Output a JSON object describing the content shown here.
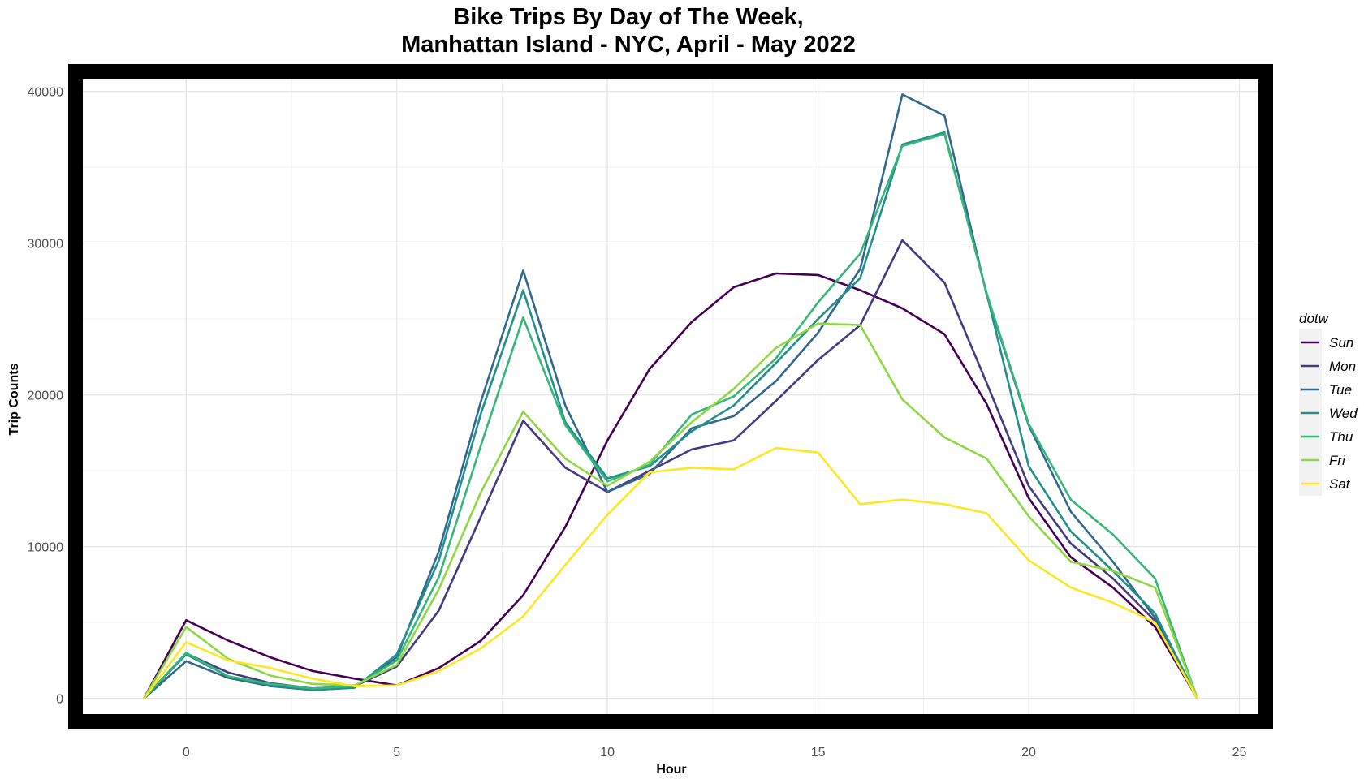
{
  "chart_data": {
    "type": "line",
    "title": [
      "Bike Trips By Day of The Week,",
      "Manhattan Island - NYC, April - May 2022"
    ],
    "xlabel": "Hour",
    "ylabel": "Trip Counts",
    "xlim": [
      -2.8,
      25.8
    ],
    "ylim": [
      -2000,
      41800
    ],
    "x_ticks": [
      0,
      5,
      10,
      15,
      20,
      25
    ],
    "y_ticks": [
      0,
      10000,
      20000,
      30000,
      40000
    ],
    "grid": true,
    "legend": {
      "title": "dotw",
      "position": "right"
    },
    "x": [
      -1,
      0,
      1,
      2,
      3,
      4,
      5,
      6,
      7,
      8,
      9,
      10,
      11,
      12,
      13,
      14,
      15,
      16,
      17,
      18,
      19,
      20,
      21,
      22,
      23,
      24
    ],
    "series": [
      {
        "name": "Sun",
        "color": "#440154",
        "values": [
          0,
          5150,
          3800,
          2700,
          1800,
          1300,
          850,
          2000,
          3800,
          6800,
          11300,
          17000,
          21700,
          24800,
          27100,
          28000,
          27900,
          26900,
          25700,
          24000,
          19400,
          13200,
          9300,
          7300,
          4700,
          0
        ]
      },
      {
        "name": "Mon",
        "color": "#443A83",
        "values": [
          0,
          2950,
          1700,
          1000,
          650,
          800,
          2100,
          5800,
          12000,
          18300,
          15200,
          13600,
          15000,
          16400,
          17000,
          19600,
          22300,
          24600,
          30200,
          27400,
          20800,
          14000,
          10200,
          7900,
          5100,
          0
        ]
      },
      {
        "name": "Tue",
        "color": "#31688E",
        "values": [
          0,
          2450,
          1350,
          800,
          550,
          700,
          2700,
          9700,
          19600,
          28200,
          19300,
          13600,
          14800,
          17800,
          18600,
          20900,
          24100,
          28300,
          39800,
          38400,
          26600,
          18000,
          12300,
          9000,
          5300,
          0
        ]
      },
      {
        "name": "Wed",
        "color": "#21908C",
        "values": [
          0,
          2900,
          1450,
          850,
          550,
          700,
          2900,
          9100,
          18800,
          26900,
          18200,
          14500,
          15300,
          17600,
          19300,
          22100,
          25000,
          27700,
          36500,
          37300,
          26700,
          15300,
          11000,
          8400,
          5600,
          0
        ]
      },
      {
        "name": "Thu",
        "color": "#35B779",
        "values": [
          0,
          3000,
          1450,
          950,
          650,
          800,
          2500,
          8000,
          16700,
          25100,
          18000,
          14300,
          15400,
          18700,
          19900,
          22400,
          26100,
          29300,
          36400,
          37200,
          26700,
          18100,
          13100,
          10800,
          7900,
          0
        ]
      },
      {
        "name": "Fri",
        "color": "#8FD744",
        "values": [
          0,
          4700,
          2600,
          1500,
          950,
          850,
          2200,
          7200,
          13600,
          18900,
          15800,
          14000,
          15600,
          18200,
          20400,
          23100,
          24700,
          24600,
          19700,
          17200,
          15800,
          12000,
          9000,
          8400,
          7300,
          0
        ]
      },
      {
        "name": "Sat",
        "color": "#FDE725",
        "values": [
          0,
          3700,
          2500,
          2000,
          1300,
          800,
          850,
          1800,
          3300,
          5400,
          8800,
          12100,
          14900,
          15200,
          15100,
          16500,
          16200,
          12800,
          13100,
          12800,
          12200,
          9100,
          7300,
          6300,
          5000,
          0
        ]
      }
    ]
  }
}
